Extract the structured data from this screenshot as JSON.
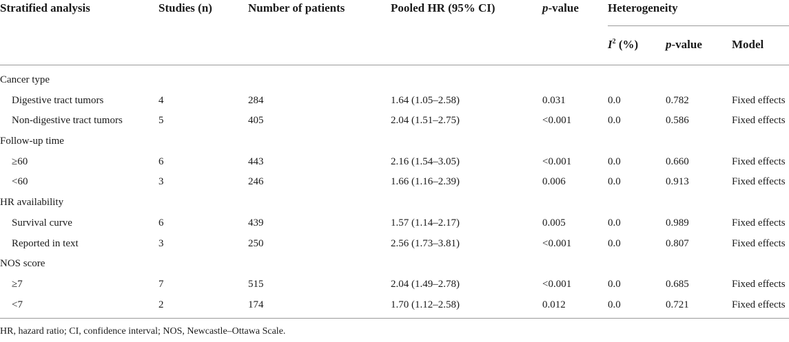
{
  "header": {
    "col1": "Stratified analysis",
    "col2": "Studies (n)",
    "col3": "Number of patients",
    "col4": "Pooled HR (95% CI)",
    "col5_italic": "p",
    "col5_rest": "-value",
    "col6": "Heterogeneity",
    "sub_i": "I",
    "sub_sup": "2",
    "sub_i_rest": " (%)",
    "sub_p_italic": "p",
    "sub_p_rest": "-value",
    "sub_model": "Model"
  },
  "groups": [
    {
      "label": "Cancer type",
      "rows": [
        [
          "Digestive tract tumors",
          "4",
          "284",
          "1.64 (1.05–2.58)",
          "0.031",
          "0.0",
          "0.782",
          "Fixed effects"
        ],
        [
          "Non-digestive tract tumors",
          "5",
          "405",
          "2.04 (1.51–2.75)",
          "<0.001",
          "0.0",
          "0.586",
          "Fixed effects"
        ]
      ]
    },
    {
      "label": "Follow-up time",
      "rows": [
        [
          "≥60",
          "6",
          "443",
          "2.16 (1.54–3.05)",
          "<0.001",
          "0.0",
          "0.660",
          "Fixed effects"
        ],
        [
          "<60",
          "3",
          "246",
          "1.66 (1.16–2.39)",
          "0.006",
          "0.0",
          "0.913",
          "Fixed effects"
        ]
      ]
    },
    {
      "label": "HR availability",
      "rows": [
        [
          "Survival curve",
          "6",
          "439",
          "1.57 (1.14–2.17)",
          "0.005",
          "0.0",
          "0.989",
          "Fixed effects"
        ],
        [
          "Reported in text",
          "3",
          "250",
          "2.56 (1.73–3.81)",
          "<0.001",
          "0.0",
          "0.807",
          "Fixed effects"
        ]
      ]
    },
    {
      "label": "NOS score",
      "rows": [
        [
          "≥7",
          "7",
          "515",
          "2.04 (1.49–2.78)",
          "<0.001",
          "0.0",
          "0.685",
          "Fixed effects"
        ],
        [
          "<7",
          "2",
          "174",
          "1.70 (1.12–2.58)",
          "0.012",
          "0.0",
          "0.721",
          "Fixed effects"
        ]
      ]
    }
  ],
  "footnote": "HR, hazard ratio; CI, confidence interval; NOS, Newcastle–Ottawa Scale."
}
